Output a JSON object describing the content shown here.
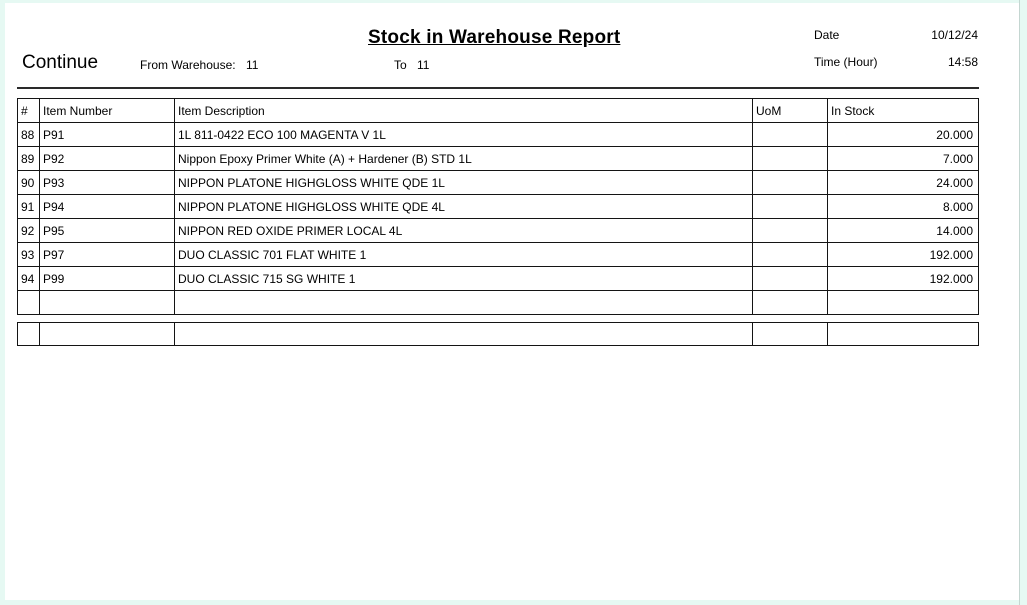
{
  "report": {
    "title": "Stock in Warehouse Report",
    "continue_label": "Continue",
    "from_warehouse_label": "From Warehouse:",
    "from_warehouse_value": "11",
    "to_label": "To",
    "to_value": "11",
    "date_label": "Date",
    "date_value": "10/12/24",
    "time_label": "Time (Hour)",
    "time_value": "14:58"
  },
  "table": {
    "columns": [
      "#",
      "Item Number",
      "Item Description",
      "UoM",
      "In Stock"
    ],
    "rows": [
      {
        "num": "88",
        "item_number": "P91",
        "description": "1L 811-0422 ECO 100 MAGENTA V 1L",
        "uom": "",
        "in_stock": "20.000"
      },
      {
        "num": "89",
        "item_number": "P92",
        "description": "Nippon Epoxy Primer White (A) + Hardener (B) STD 1L",
        "uom": "",
        "in_stock": "7.000"
      },
      {
        "num": "90",
        "item_number": "P93",
        "description": "NIPPON PLATONE HIGHGLOSS WHITE QDE 1L",
        "uom": "",
        "in_stock": "24.000"
      },
      {
        "num": "91",
        "item_number": "P94",
        "description": "NIPPON PLATONE HIGHGLOSS WHITE QDE 4L",
        "uom": "",
        "in_stock": "8.000"
      },
      {
        "num": "92",
        "item_number": "P95",
        "description": "NIPPON RED OXIDE PRIMER LOCAL 4L",
        "uom": "",
        "in_stock": "14.000"
      },
      {
        "num": "93",
        "item_number": "P97",
        "description": "DUO CLASSIC 701 FLAT WHITE 1",
        "uom": "",
        "in_stock": "192.000"
      },
      {
        "num": "94",
        "item_number": "P99",
        "description": "DUO CLASSIC 715 SG WHITE 1",
        "uom": "",
        "in_stock": "192.000"
      },
      {
        "num": "",
        "item_number": "",
        "description": "",
        "uom": "",
        "in_stock": ""
      }
    ],
    "footer_row": {
      "num": "",
      "item_number": "",
      "description": "",
      "uom": "",
      "in_stock": ""
    }
  },
  "colors": {
    "frame": "#e6f9f3",
    "grid_line": "#141414",
    "text": "#000000"
  }
}
